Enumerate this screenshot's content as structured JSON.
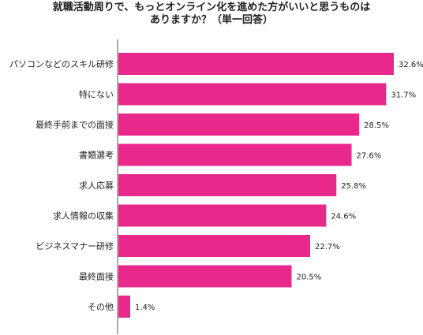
{
  "chart_data": {
    "type": "bar",
    "orientation": "horizontal",
    "title": "就職活動周りで、もっとオンライン化を進めた方がいいと思うものはありますか？（単一回答）",
    "title_lines": [
      "就職活動周りで、もっとオンライン化を進めた方がいいと思うものは",
      "ありますか？（単一回答）"
    ],
    "categories": [
      "パソコンなどのスキル研修",
      "特にない",
      "最終手前までの面接",
      "書類選考",
      "求人応募",
      "求人情報の収集",
      "ビジネスマナー研修",
      "最終面接",
      "その他"
    ],
    "values": [
      32.6,
      31.7,
      28.5,
      27.6,
      25.8,
      24.6,
      22.7,
      20.5,
      1.4
    ],
    "value_labels": [
      "32.6%",
      "31.7%",
      "28.5%",
      "27.6%",
      "25.8%",
      "24.6%",
      "22.7%",
      "20.5%",
      "1.4%"
    ],
    "unit": "%",
    "xlabel": "",
    "ylabel": "",
    "xlim": [
      0,
      32.6
    ],
    "grid": false,
    "legend": "none",
    "bar_color": "#E8288A",
    "axis_color": "#555555"
  }
}
